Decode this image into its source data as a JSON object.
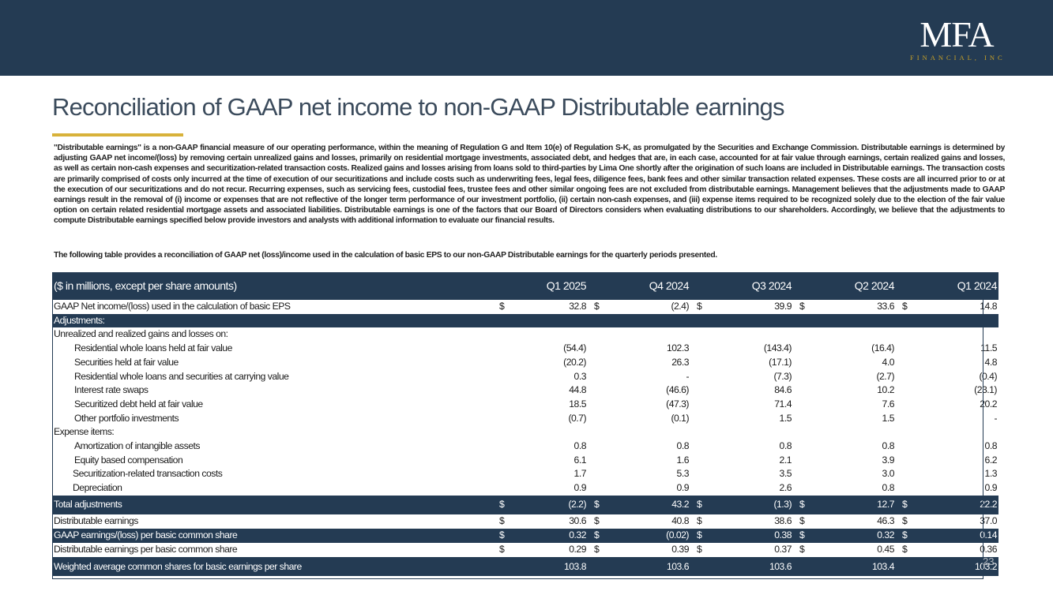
{
  "logo": {
    "main": "MFA",
    "sub": "FINANCIAL, INC"
  },
  "title": "Reconciliation of GAAP net income to non-GAAP Distributable earnings",
  "paragraph1": "\"Distributable earnings\" is a non-GAAP financial measure of our operating performance, within the meaning of Regulation G and Item 10(e) of Regulation S-K, as promulgated by the Securities and Exchange Commission. Distributable earnings is determined by adjusting GAAP net income/(loss) by removing certain unrealized gains and losses, primarily on residential mortgage investments, associated debt, and hedges that are, in each case, accounted for at fair value through earnings, certain realized gains and losses, as well as certain non-cash expenses and securitization-related transaction costs. Realized gains and losses arising from loans sold to third-parties by Lima One shortly after the origination of such loans are included in Distributable earnings. The transaction costs are primarily comprised of costs only incurred at the time of execution of our securitizations and include costs such as underwriting fees, legal fees, diligence fees, bank fees and other similar transaction related expenses. These costs are all incurred prior to or at the execution of our securitizations and do not recur. Recurring expenses, such as servicing fees, custodial fees, trustee fees and other similar ongoing fees are not excluded from distributable earnings. Management believes that the adjustments made to GAAP earnings result in the removal of (i) income or expenses that are not reflective of the longer term performance of our investment portfolio, (ii) certain non-cash expenses, and (iii) expense items required to be recognized solely due to the election of the fair value option on certain related residential mortgage assets and associated liabilities. Distributable earnings is one of the factors that our Board of Directors considers when evaluating distributions to our shareholders. Accordingly, we believe that the adjustments to compute Distributable earnings specified below provide investors and analysts with additional information to evaluate our financial results.",
  "paragraph2": "The following table provides a reconciliation of GAAP net (loss)/income used in the calculation of basic EPS to our non-GAAP Distributable earnings for the quarterly periods presented.",
  "table": {
    "header_label": "($ in millions, except per share amounts)",
    "periods": [
      "Q1 2025",
      "Q4 2024",
      "Q3 2024",
      "Q2 2024",
      "Q1 2024"
    ],
    "currency": "$",
    "gaap": {
      "label": "GAAP Net income/(loss) used in the calculation of basic EPS",
      "values": [
        "32.8",
        "(2.4)",
        "39.9",
        "33.6",
        "14.8"
      ]
    },
    "adjustments_label": "Adjustments:",
    "unrealized_label": "Unrealized and realized gains and losses on:",
    "unrealized": [
      {
        "label": "Residential whole loans held at fair value",
        "values": [
          "(54.4)",
          "102.3",
          "(143.4)",
          "(16.4)",
          "11.5"
        ]
      },
      {
        "label": "Securities held at fair value",
        "values": [
          "(20.2)",
          "26.3",
          "(17.1)",
          "4.0",
          "4.8"
        ]
      },
      {
        "label": "Residential whole loans and securities at carrying value",
        "values": [
          "0.3",
          "-",
          "(7.3)",
          "(2.7)",
          "(0.4)"
        ]
      },
      {
        "label": "Interest rate swaps",
        "values": [
          "44.8",
          "(46.6)",
          "84.6",
          "10.2",
          "(23.1)"
        ]
      },
      {
        "label": "Securitized debt held at fair value",
        "values": [
          "18.5",
          "(47.3)",
          "71.4",
          "7.6",
          "20.2"
        ]
      },
      {
        "label": "Other portfolio investments",
        "values": [
          "(0.7)",
          "(0.1)",
          "1.5",
          "1.5",
          "-"
        ]
      }
    ],
    "expense_label": "Expense items:",
    "expenses": [
      {
        "label": "Amortization of intangible assets",
        "values": [
          "0.8",
          "0.8",
          "0.8",
          "0.8",
          "0.8"
        ]
      },
      {
        "label": "Equity based compensation",
        "values": [
          "6.1",
          "1.6",
          "2.1",
          "3.9",
          "6.2"
        ]
      },
      {
        "label": "Securitization-related transaction costs",
        "values": [
          "1.7",
          "5.3",
          "3.5",
          "3.0",
          "1.3"
        ]
      },
      {
        "label": "Depreciation",
        "values": [
          "0.9",
          "0.9",
          "2.6",
          "0.8",
          "0.9"
        ]
      }
    ],
    "total_adjustments": {
      "label": "Total adjustments",
      "values": [
        "(2.2)",
        "43.2",
        "(1.3)",
        "12.7",
        "22.2"
      ]
    },
    "distributable": {
      "label": "Distributable earnings",
      "values": [
        "30.6",
        "40.8",
        "38.6",
        "46.3",
        "37.0"
      ]
    },
    "gaap_eps": {
      "label": "GAAP earnings/(loss) per basic common share",
      "values": [
        "0.32",
        "(0.02)",
        "0.38",
        "0.32",
        "0.14"
      ]
    },
    "dist_eps": {
      "label": "Distributable earnings per basic common share",
      "values": [
        "0.29",
        "0.39",
        "0.37",
        "0.45",
        "0.36"
      ]
    },
    "weighted": {
      "label": "Weighted average common shares for basic earnings per share",
      "values": [
        "103.8",
        "103.6",
        "103.6",
        "103.4",
        "103.2"
      ]
    }
  },
  "page_number": "23"
}
